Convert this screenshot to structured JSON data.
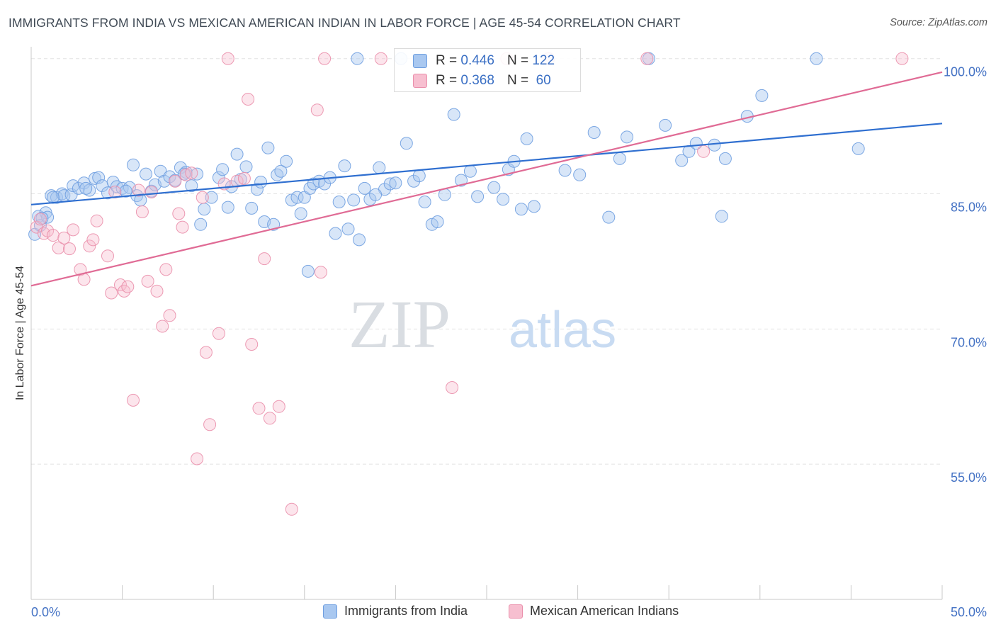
{
  "title": "IMMIGRANTS FROM INDIA VS MEXICAN AMERICAN INDIAN IN LABOR FORCE | AGE 45-54 CORRELATION CHART",
  "source": "Source: ZipAtlas.com",
  "watermark": {
    "zip": "ZIP",
    "atlas": "atlas"
  },
  "stat_legend": {
    "rows": [
      {
        "r_label": "R = ",
        "r_value": "0.446",
        "n_label": "N = ",
        "n_value": "122",
        "color": "#a9c8f0",
        "border": "#6f9fe0"
      },
      {
        "r_label": "R = ",
        "r_value": "0.368",
        "n_label": "N = ",
        "n_value": " 60",
        "color": "#f7bfd0",
        "border": "#ea8fab"
      }
    ]
  },
  "chart_data": {
    "type": "scatter",
    "title": "IMMIGRANTS FROM INDIA VS MEXICAN AMERICAN INDIAN IN LABOR FORCE | AGE 45-54 CORRELATION CHART",
    "xlabel": "",
    "ylabel": "In Labor Force | Age 45-54",
    "xlim": [
      0,
      50
    ],
    "ylim": [
      40,
      101
    ],
    "x_tick_labels": [
      "0.0%",
      "50.0%"
    ],
    "y_ticks": [
      55,
      70,
      85,
      100
    ],
    "y_tick_labels": [
      "55.0%",
      "70.0%",
      "85.0%",
      "100.0%"
    ],
    "grid": true,
    "legend_position": "bottom-center",
    "series": [
      {
        "name": "Immigrants from India",
        "color": "#a9c8f0",
        "edge_color": "#6f9fe0",
        "trend_color": "#2f6fd0",
        "r": 0.446,
        "n": 122,
        "trend": {
          "x": [
            0,
            50
          ],
          "y": [
            83.8,
            92.8
          ]
        },
        "points": [
          [
            0.2,
            80.5
          ],
          [
            0.4,
            82.5
          ],
          [
            0.5,
            81.5
          ],
          [
            0.8,
            82.9
          ],
          [
            0.9,
            82.4
          ],
          [
            1.1,
            84.8
          ],
          [
            1.4,
            84.6
          ],
          [
            1.7,
            85.0
          ],
          [
            1.8,
            84.8
          ],
          [
            2.2,
            84.9
          ],
          [
            2.3,
            85.9
          ],
          [
            2.6,
            85.6
          ],
          [
            2.9,
            86.2
          ],
          [
            3.2,
            85.4
          ],
          [
            3.5,
            86.7
          ],
          [
            3.7,
            86.8
          ],
          [
            3.9,
            85.9
          ],
          [
            4.2,
            85.1
          ],
          [
            4.5,
            86.3
          ],
          [
            4.7,
            85.8
          ],
          [
            5.0,
            85.6
          ],
          [
            5.4,
            85.7
          ],
          [
            5.6,
            88.2
          ],
          [
            5.8,
            84.8
          ],
          [
            6.0,
            84.3
          ],
          [
            6.3,
            87.2
          ],
          [
            6.6,
            85.3
          ],
          [
            6.8,
            86.0
          ],
          [
            7.1,
            87.5
          ],
          [
            7.3,
            86.4
          ],
          [
            7.6,
            86.9
          ],
          [
            7.9,
            86.5
          ],
          [
            8.2,
            87.9
          ],
          [
            8.5,
            87.4
          ],
          [
            8.8,
            85.9
          ],
          [
            9.1,
            87.2
          ],
          [
            9.3,
            81.6
          ],
          [
            9.5,
            83.3
          ],
          [
            9.9,
            84.6
          ],
          [
            10.3,
            86.8
          ],
          [
            10.5,
            87.7
          ],
          [
            10.8,
            83.5
          ],
          [
            11.0,
            85.8
          ],
          [
            11.3,
            89.4
          ],
          [
            11.5,
            86.6
          ],
          [
            11.8,
            88.0
          ],
          [
            12.1,
            83.4
          ],
          [
            12.4,
            85.5
          ],
          [
            12.8,
            81.9
          ],
          [
            13.0,
            90.1
          ],
          [
            13.3,
            81.6
          ],
          [
            13.5,
            87.1
          ],
          [
            13.7,
            87.5
          ],
          [
            14.0,
            88.6
          ],
          [
            14.3,
            84.3
          ],
          [
            14.6,
            84.6
          ],
          [
            14.8,
            82.8
          ],
          [
            15.0,
            84.6
          ],
          [
            15.3,
            85.6
          ],
          [
            15.5,
            86.1
          ],
          [
            15.8,
            86.4
          ],
          [
            16.1,
            86.1
          ],
          [
            16.4,
            86.8
          ],
          [
            16.7,
            80.6
          ],
          [
            16.9,
            84.1
          ],
          [
            17.2,
            88.1
          ],
          [
            17.4,
            81.1
          ],
          [
            17.7,
            84.3
          ],
          [
            18.0,
            79.9
          ],
          [
            18.3,
            85.6
          ],
          [
            18.6,
            84.4
          ],
          [
            19.1,
            87.9
          ],
          [
            19.4,
            85.5
          ],
          [
            19.7,
            86.1
          ],
          [
            20.0,
            86.2
          ],
          [
            20.3,
            100.0
          ],
          [
            20.6,
            90.6
          ],
          [
            21.0,
            86.4
          ],
          [
            21.6,
            84.1
          ],
          [
            22.0,
            81.6
          ],
          [
            22.3,
            81.9
          ],
          [
            22.7,
            84.9
          ],
          [
            23.2,
            93.8
          ],
          [
            23.6,
            86.5
          ],
          [
            24.1,
            87.5
          ],
          [
            24.5,
            84.7
          ],
          [
            25.4,
            85.7
          ],
          [
            25.9,
            84.4
          ],
          [
            26.2,
            87.7
          ],
          [
            26.5,
            88.6
          ],
          [
            26.9,
            83.3
          ],
          [
            27.2,
            91.1
          ],
          [
            27.6,
            83.6
          ],
          [
            28.4,
            100.0
          ],
          [
            29.3,
            87.6
          ],
          [
            30.1,
            87.1
          ],
          [
            30.9,
            91.8
          ],
          [
            31.7,
            82.4
          ],
          [
            32.3,
            88.9
          ],
          [
            32.7,
            91.3
          ],
          [
            33.9,
            100.0
          ],
          [
            34.8,
            92.6
          ],
          [
            35.7,
            88.7
          ],
          [
            36.1,
            89.7
          ],
          [
            36.5,
            90.6
          ],
          [
            37.5,
            90.4
          ],
          [
            37.9,
            82.5
          ],
          [
            38.1,
            88.9
          ],
          [
            39.3,
            93.6
          ],
          [
            40.1,
            95.9
          ],
          [
            43.1,
            100.0
          ],
          [
            45.4,
            90.0
          ],
          [
            17.9,
            100.0
          ],
          [
            18.9,
            84.9
          ],
          [
            21.3,
            87.0
          ],
          [
            8.4,
            87.2
          ],
          [
            5.2,
            85.3
          ],
          [
            3.0,
            85.6
          ],
          [
            0.6,
            82.3
          ],
          [
            1.2,
            84.6
          ],
          [
            12.6,
            86.3
          ],
          [
            15.2,
            76.4
          ]
        ]
      },
      {
        "name": "Mexican American Indians",
        "color": "#f7bfd0",
        "edge_color": "#ea8fab",
        "trend_color": "#e06b95",
        "r": 0.368,
        "n": 60,
        "trend": {
          "x": [
            0,
            50
          ],
          "y": [
            74.8,
            98.5
          ]
        },
        "points": [
          [
            0.3,
            81.3
          ],
          [
            0.5,
            82.2
          ],
          [
            0.7,
            80.6
          ],
          [
            0.9,
            80.9
          ],
          [
            1.2,
            80.4
          ],
          [
            1.5,
            79.0
          ],
          [
            1.8,
            80.1
          ],
          [
            2.1,
            78.9
          ],
          [
            2.3,
            81.0
          ],
          [
            2.7,
            76.6
          ],
          [
            2.9,
            75.5
          ],
          [
            3.2,
            79.2
          ],
          [
            3.4,
            79.9
          ],
          [
            3.6,
            82.0
          ],
          [
            4.2,
            78.1
          ],
          [
            4.4,
            74.0
          ],
          [
            4.6,
            85.2
          ],
          [
            4.9,
            74.9
          ],
          [
            5.1,
            74.2
          ],
          [
            5.3,
            74.7
          ],
          [
            5.6,
            62.1
          ],
          [
            5.9,
            85.4
          ],
          [
            6.1,
            83.0
          ],
          [
            6.4,
            75.3
          ],
          [
            6.6,
            85.2
          ],
          [
            6.9,
            74.2
          ],
          [
            7.2,
            70.3
          ],
          [
            7.4,
            76.6
          ],
          [
            7.6,
            71.5
          ],
          [
            7.9,
            86.4
          ],
          [
            8.1,
            82.8
          ],
          [
            8.3,
            81.3
          ],
          [
            8.5,
            87.1
          ],
          [
            8.8,
            87.3
          ],
          [
            9.1,
            55.6
          ],
          [
            9.4,
            84.6
          ],
          [
            9.6,
            67.4
          ],
          [
            9.8,
            59.4
          ],
          [
            10.3,
            69.5
          ],
          [
            10.6,
            86.1
          ],
          [
            10.8,
            100.0
          ],
          [
            11.3,
            86.4
          ],
          [
            11.7,
            86.7
          ],
          [
            11.9,
            95.5
          ],
          [
            12.1,
            68.3
          ],
          [
            12.5,
            61.2
          ],
          [
            12.8,
            77.8
          ],
          [
            13.1,
            60.1
          ],
          [
            13.6,
            61.4
          ],
          [
            14.3,
            50.0
          ],
          [
            15.7,
            94.3
          ],
          [
            15.9,
            76.3
          ],
          [
            16.1,
            100.0
          ],
          [
            19.2,
            100.0
          ],
          [
            23.1,
            63.5
          ],
          [
            26.1,
            100.0
          ],
          [
            28.4,
            100.0
          ],
          [
            36.9,
            89.7
          ],
          [
            47.8,
            100.0
          ],
          [
            33.8,
            100.0
          ]
        ]
      }
    ]
  }
}
